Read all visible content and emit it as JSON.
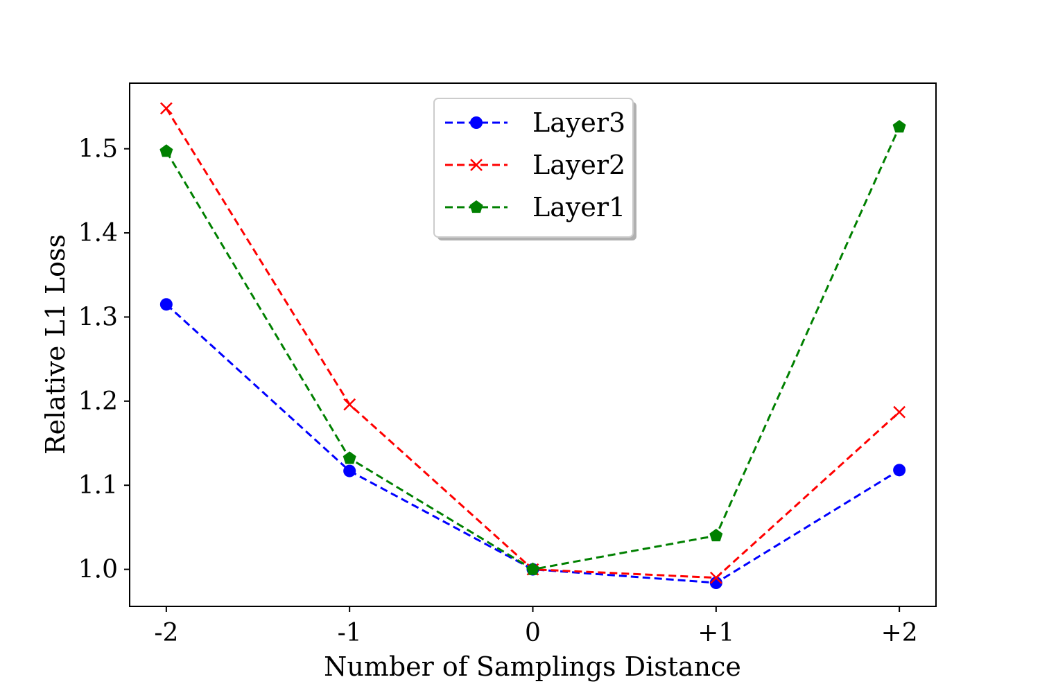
{
  "chart_data": {
    "type": "line",
    "title": "",
    "xlabel": "Number of Samplings Distance",
    "ylabel": "Relative L1 Loss",
    "categories": [
      "-2",
      "-1",
      "0",
      "+1",
      "+2"
    ],
    "x": [
      -2,
      -1,
      0,
      1,
      2
    ],
    "xlim": [
      -2.2,
      2.2
    ],
    "ylim": [
      0.956,
      1.578
    ],
    "yticks": [
      1.0,
      1.1,
      1.2,
      1.3,
      1.4,
      1.5
    ],
    "ytick_labels": [
      "1.0",
      "1.1",
      "1.2",
      "1.3",
      "1.4",
      "1.5"
    ],
    "legend_position": "top-center",
    "grid": false,
    "series": [
      {
        "name": "Layer3",
        "color": "#0000ff",
        "marker": "circle",
        "linestyle": "dashed",
        "values": [
          1.315,
          1.117,
          1.0,
          0.984,
          1.118
        ]
      },
      {
        "name": "Layer2",
        "color": "#ff0000",
        "marker": "x",
        "linestyle": "dashed",
        "values": [
          1.548,
          1.196,
          1.0,
          0.99,
          1.187
        ]
      },
      {
        "name": "Layer1",
        "color": "#008000",
        "marker": "pentagon",
        "linestyle": "dashed",
        "values": [
          1.497,
          1.132,
          1.0,
          1.04,
          1.526
        ]
      }
    ]
  }
}
